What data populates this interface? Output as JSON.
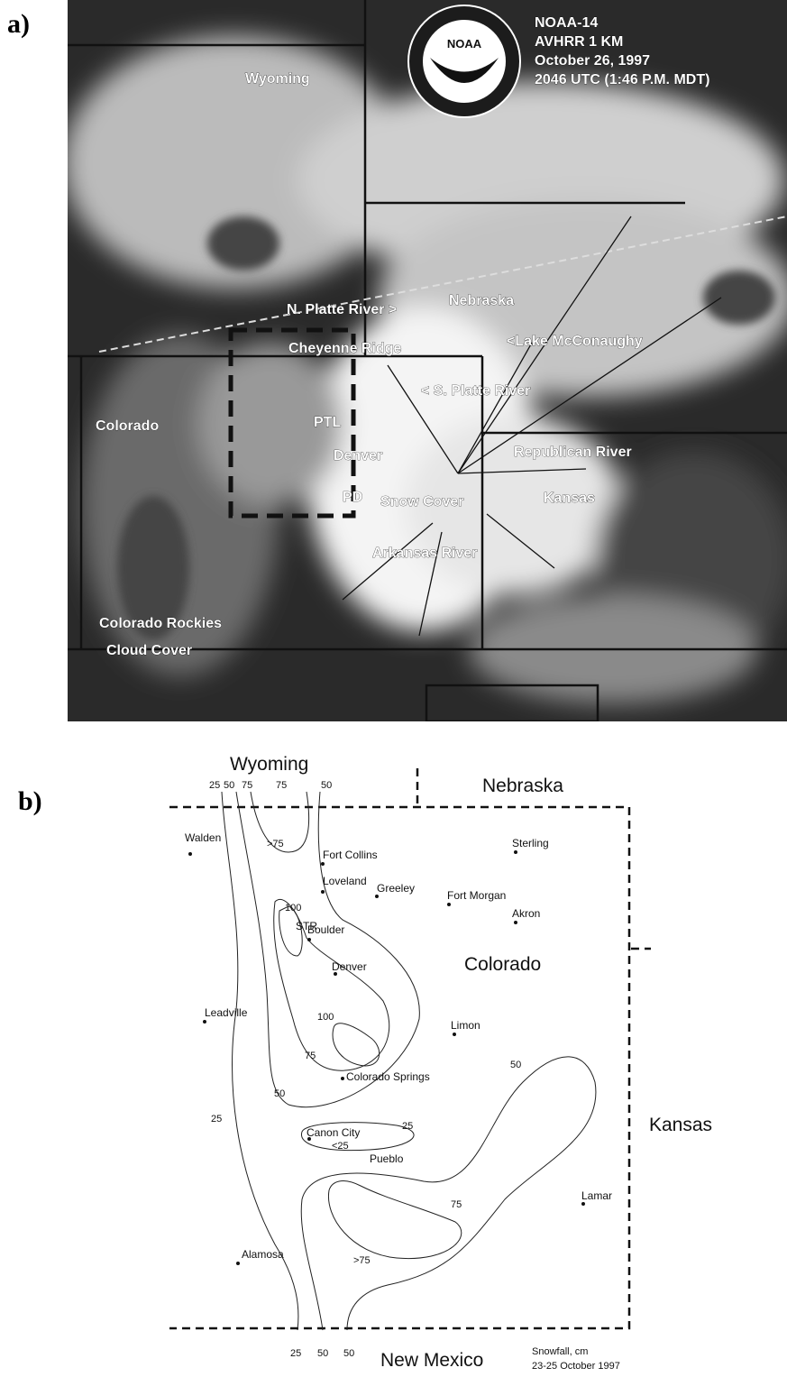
{
  "panel_a": {
    "label": "a)",
    "header": [
      "NOAA-14",
      "AVHRR 1 KM",
      "October 26, 1997",
      "2046 UTC (1:46 P.M. MDT)"
    ],
    "logo": "NOAA",
    "labels": [
      "Wyoming",
      "Nebraska",
      "N. Platte River >",
      "Cheyenne Ridge",
      "<Lake McConaughy",
      "< S. Platte River",
      "Colorado",
      "PTL",
      "Denver",
      "PD",
      "Snow Cover",
      "Republican River",
      "Kansas",
      "Arkansas River",
      "Colorado Rockies",
      "Cloud Cover"
    ]
  },
  "panel_b": {
    "label": "b)",
    "states": [
      "Wyoming",
      "Nebraska",
      "Colorado",
      "Kansas",
      "New Mexico"
    ],
    "cities": [
      "Walden",
      "Fort Collins",
      "Loveland",
      "Greeley",
      "Fort Morgan",
      "Sterling",
      "Akron",
      "Boulder",
      "Denver",
      "Leadville",
      "Limon",
      "Colorado Springs",
      "Canon City",
      "Pueblo",
      "Lamar",
      "Alamosa"
    ],
    "site": "STR",
    "contour_labels": [
      25,
      50,
      75,
      75,
      50,
      ">75",
      100,
      100,
      75,
      50,
      25,
      25,
      "<25",
      50,
      75,
      ">75",
      25,
      50,
      50
    ],
    "caption": [
      "Snowfall, cm",
      "23-25 October 1997"
    ]
  }
}
